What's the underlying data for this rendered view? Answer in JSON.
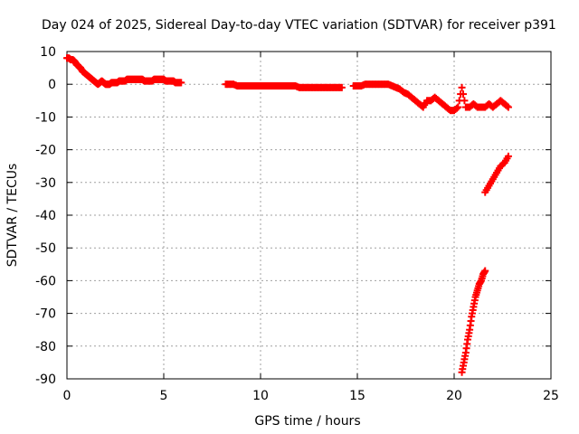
{
  "chart_data": {
    "type": "scatter",
    "title": "Day 024 of 2025, Sidereal Day-to-day VTEC variation (SDTVAR) for receiver p391",
    "xlabel": "GPS time / hours",
    "ylabel": "SDTVAR / TECUs",
    "xlim": [
      0,
      25
    ],
    "ylim": [
      -90,
      10
    ],
    "xticks": [
      "0",
      "5",
      "10",
      "15",
      "20",
      "25"
    ],
    "yticks": [
      "10",
      "0",
      "-10",
      "-20",
      "-30",
      "-40",
      "-50",
      "-60",
      "-70",
      "-80",
      "-90"
    ],
    "grid": true,
    "marker": "plus",
    "color": "#ff0000",
    "series": [
      {
        "x": [
          0.0,
          0.1,
          0.2,
          0.3,
          0.4,
          0.5,
          0.6,
          0.7,
          0.8,
          0.9,
          1.0,
          1.1,
          1.2,
          1.3,
          1.4,
          1.5,
          1.6,
          1.7,
          1.8,
          1.9,
          2.0,
          2.1,
          2.2,
          2.3,
          2.4,
          2.5,
          2.6,
          2.7,
          2.8,
          2.9,
          3.0,
          3.1,
          3.2,
          3.3,
          3.4,
          3.5,
          3.6,
          3.7,
          3.8,
          3.9,
          4.0,
          4.1,
          4.2,
          4.3,
          4.4,
          4.5,
          4.6,
          4.7,
          4.8,
          4.9,
          5.0,
          5.1,
          5.2,
          5.3,
          5.4,
          5.5,
          5.6,
          5.7,
          5.8,
          5.9,
          8.2,
          8.4,
          8.6,
          8.8,
          9.0,
          9.2,
          9.4,
          9.6,
          9.8,
          10.0,
          10.2,
          10.4,
          10.6,
          10.8,
          11.0,
          11.2,
          11.4,
          11.6,
          11.8,
          12.0,
          12.2,
          12.4,
          12.6,
          12.8,
          13.0,
          13.2,
          13.4,
          13.6,
          13.8,
          14.0,
          14.2,
          14.8,
          15.0,
          15.2,
          15.4,
          15.6,
          15.8,
          16.0,
          16.2,
          16.4,
          16.6,
          16.8,
          17.0,
          17.2,
          17.4,
          17.6,
          17.8,
          18.0,
          18.2,
          18.4,
          18.6,
          18.8,
          19.0,
          19.2,
          19.4,
          19.6,
          19.8,
          20.0,
          20.2,
          20.4,
          20.6,
          20.8,
          21.0,
          21.2,
          21.4,
          21.6,
          21.8,
          22.0,
          22.2,
          22.4,
          22.6,
          22.8
        ],
        "y": [
          8,
          8,
          7.5,
          7.5,
          7,
          6,
          5.5,
          5,
          4,
          3.5,
          3,
          2.5,
          2,
          1.5,
          1,
          0.5,
          0,
          0.5,
          1,
          0.5,
          0,
          0,
          0,
          0.5,
          0.5,
          0.5,
          0.5,
          1,
          1,
          1,
          1,
          1.5,
          1.5,
          1.5,
          1.5,
          1.5,
          1.5,
          1.5,
          1.5,
          1.5,
          1,
          1,
          1,
          1,
          1,
          1.5,
          1.5,
          1.5,
          1.5,
          1.5,
          1.5,
          1,
          1,
          1,
          1,
          1,
          0.5,
          0.5,
          0.5,
          0.5,
          0,
          0,
          0,
          -0.5,
          -0.5,
          -0.5,
          -0.5,
          -0.5,
          -0.5,
          -0.5,
          -0.5,
          -0.5,
          -0.5,
          -0.5,
          -0.5,
          -0.5,
          -0.5,
          -0.5,
          -0.5,
          -1,
          -1,
          -1,
          -1,
          -1,
          -1,
          -1,
          -1,
          -1,
          -1,
          -1,
          -1,
          -0.5,
          -0.5,
          -0.5,
          0,
          0,
          0,
          0,
          0,
          0,
          0,
          -0.5,
          -1,
          -1.5,
          -2.5,
          -3,
          -4,
          -5,
          -6,
          -7,
          -5,
          -5,
          -4,
          -5,
          -6,
          -7,
          -8,
          -8,
          -7,
          -1,
          -7,
          -7,
          -6,
          -7,
          -7,
          -7,
          -6,
          -7,
          -6,
          -5,
          -6,
          -7
        ],
        "style": "primary-band"
      },
      {
        "x": [
          20.4,
          20.5,
          20.6,
          20.7,
          20.8,
          20.9,
          21.0,
          21.1,
          21.2,
          21.3,
          21.4,
          21.5,
          21.6
        ],
        "y": [
          -88,
          -85,
          -82,
          -78,
          -75,
          -71,
          -68,
          -65,
          -63,
          -61,
          -60,
          -58,
          -57
        ],
        "style": "descending-segment"
      },
      {
        "x": [
          21.6,
          21.8,
          22.0,
          22.2,
          22.4,
          22.6,
          22.8
        ],
        "y": [
          -33,
          -31,
          -29,
          -27,
          -25,
          -24,
          -22
        ],
        "style": "recovery-segment"
      }
    ]
  }
}
